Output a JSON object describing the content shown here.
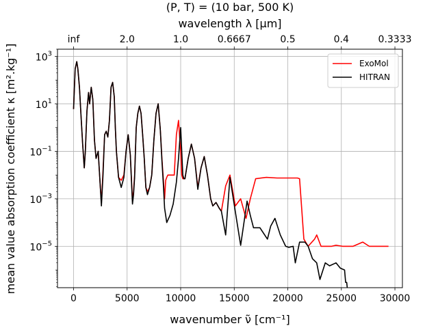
{
  "chart_data": {
    "type": "line",
    "title": "(P, T) = (10 bar, 500 K)",
    "xlabel": "wavenumber ν̃ [cm⁻¹]",
    "ylabel": "mean value absorption coefficient κ [m².kg⁻¹]",
    "top_xlabel": "wavelength λ [μm]",
    "xlim": [
      -1500,
      30700
    ],
    "ylim": [
      1.8e-07,
      2000
    ],
    "yscale": "log",
    "grid": true,
    "legend_position": "top-right",
    "x_ticks": [
      0,
      5000,
      10000,
      15000,
      20000,
      25000,
      30000
    ],
    "x_tick_labels": [
      "0",
      "5000",
      "10000",
      "15000",
      "20000",
      "25000",
      "30000"
    ],
    "y_ticks": [
      1e-05,
      0.001,
      0.1,
      10,
      1000
    ],
    "y_tick_labels": [
      {
        "base": "10",
        "exp": "−5"
      },
      {
        "base": "10",
        "exp": "−3"
      },
      {
        "base": "10",
        "exp": "−1"
      },
      {
        "base": "10",
        "exp": "1"
      },
      {
        "base": "10",
        "exp": "3"
      }
    ],
    "top_ticks": [
      0,
      5000,
      10000,
      15000,
      20000,
      25000,
      30000
    ],
    "top_tick_labels": [
      "inf",
      "2.0",
      "1.0",
      "0.6667",
      "0.5",
      "0.4",
      "0.3333"
    ],
    "series": [
      {
        "name": "ExoMol",
        "color": "#ff0000",
        "x": [
          0,
          150,
          300,
          400,
          550,
          700,
          850,
          1000,
          1100,
          1250,
          1400,
          1500,
          1650,
          1800,
          1950,
          2100,
          2300,
          2500,
          2600,
          2750,
          2900,
          3050,
          3200,
          3350,
          3500,
          3650,
          3800,
          3900,
          4000,
          4200,
          4450,
          4700,
          4900,
          5100,
          5300,
          5500,
          5600,
          5700,
          5850,
          6000,
          6150,
          6300,
          6450,
          6600,
          6750,
          6900,
          7100,
          7300,
          7500,
          7700,
          7900,
          8100,
          8250,
          8400,
          8500,
          8600,
          8700,
          8800,
          8900,
          9100,
          9400,
          9600,
          9800,
          10000,
          10100,
          10200,
          10300,
          10400,
          10700,
          11000,
          11300,
          11600,
          11900,
          12200,
          12500,
          12800,
          13000,
          13300,
          13600,
          13800,
          14200,
          14600,
          15100,
          15600,
          16100,
          16500,
          17000,
          18000,
          19000,
          20000,
          20500,
          20900,
          21100,
          21500,
          21900,
          22500,
          22700,
          23100,
          23500,
          24100,
          24500,
          25100,
          25400,
          26100,
          27000,
          27600,
          28500,
          29400
        ],
        "y": [
          6.0,
          300.0,
          600.0,
          300.0,
          50.0,
          3.0,
          0.2,
          0.02,
          0.1,
          5.0,
          30.0,
          10.0,
          50.0,
          15.0,
          0.3,
          0.05,
          0.1,
          0.003,
          0.0007,
          0.015,
          0.5,
          0.7,
          0.4,
          2.0,
          50.0,
          80.0,
          20.0,
          1.0,
          0.1,
          0.008,
          0.006,
          0.01,
          0.1,
          0.5,
          0.07,
          0.0008,
          0.002,
          0.01,
          1.0,
          4.0,
          8.0,
          4.0,
          0.5,
          0.05,
          0.003,
          0.002,
          0.003,
          0.01,
          0.3,
          4.0,
          10.0,
          0.8,
          0.05,
          0.005,
          0.001,
          0.006,
          0.008,
          0.01,
          0.01,
          0.01,
          0.01,
          0.5,
          2.0,
          0.1,
          0.01,
          0.007,
          0.007,
          0.007,
          0.05,
          0.2,
          0.05,
          0.003,
          0.02,
          0.06,
          0.01,
          0.001,
          0.0005,
          0.0007,
          0.0004,
          0.0003,
          0.0035,
          0.01,
          0.0005,
          0.001,
          0.00015,
          0.001,
          0.007,
          0.008,
          0.0075,
          0.0075,
          0.0075,
          0.0075,
          0.007,
          2e-05,
          1e-05,
          2e-05,
          3e-05,
          1e-05,
          1e-05,
          1e-05,
          1.1e-05,
          1e-05,
          1e-05,
          1e-05,
          1.5e-05,
          1e-05,
          1e-05,
          1e-05
        ]
      },
      {
        "name": "HITRAN",
        "color": "#000000",
        "x": [
          0,
          150,
          300,
          400,
          550,
          700,
          850,
          1000,
          1100,
          1250,
          1400,
          1500,
          1650,
          1800,
          1950,
          2100,
          2300,
          2500,
          2600,
          2750,
          2900,
          3050,
          3200,
          3350,
          3500,
          3650,
          3800,
          3900,
          4000,
          4200,
          4450,
          4700,
          4900,
          5100,
          5300,
          5500,
          5600,
          5700,
          5850,
          6000,
          6150,
          6300,
          6450,
          6600,
          6750,
          6900,
          7100,
          7300,
          7500,
          7700,
          7900,
          8100,
          8250,
          8400,
          8500,
          8700,
          9000,
          9300,
          9600,
          9800,
          10000,
          10100,
          10200,
          10300,
          10400,
          10700,
          11000,
          11300,
          11600,
          11900,
          12200,
          12500,
          12800,
          13000,
          13300,
          13600,
          13800,
          14200,
          14600,
          15200,
          15600,
          16200,
          16500,
          16800,
          17400,
          18100,
          18400,
          18800,
          19300,
          19800,
          20100,
          20500,
          20700,
          21100,
          21600,
          21900,
          22300,
          22700,
          23000,
          23500,
          23900,
          24500,
          24900,
          25300,
          25400,
          25500,
          25550
        ],
        "y": [
          6.0,
          300.0,
          600.0,
          300.0,
          50.0,
          3.0,
          0.2,
          0.02,
          0.1,
          5.0,
          30.0,
          10.0,
          50.0,
          15.0,
          0.3,
          0.05,
          0.1,
          0.003,
          0.0005,
          0.01,
          0.5,
          0.7,
          0.4,
          2.0,
          50.0,
          80.0,
          20.0,
          1.0,
          0.1,
          0.008,
          0.003,
          0.008,
          0.1,
          0.5,
          0.07,
          0.0006,
          0.0015,
          0.008,
          1.0,
          4.0,
          8.0,
          4.0,
          0.5,
          0.05,
          0.003,
          0.0015,
          0.003,
          0.01,
          0.3,
          4.0,
          10.0,
          0.8,
          0.04,
          0.003,
          0.0004,
          0.0001,
          0.0002,
          0.0006,
          0.005,
          0.05,
          1.0,
          0.1,
          0.01,
          0.007,
          0.007,
          0.05,
          0.2,
          0.05,
          0.0025,
          0.02,
          0.06,
          0.01,
          0.001,
          0.0005,
          0.0007,
          0.0004,
          0.0003,
          3e-05,
          0.008,
          0.00015,
          1.1e-05,
          0.0008,
          0.0002,
          6e-05,
          6e-05,
          2e-05,
          7e-05,
          0.00015,
          3e-05,
          1e-05,
          9e-06,
          1e-05,
          2e-06,
          1.5e-05,
          1.5e-05,
          1e-05,
          3e-06,
          2e-06,
          4e-07,
          2e-06,
          1.5e-06,
          2e-06,
          1.2e-06,
          1e-06,
          3e-07,
          3e-07,
          1.8e-07
        ]
      }
    ]
  }
}
